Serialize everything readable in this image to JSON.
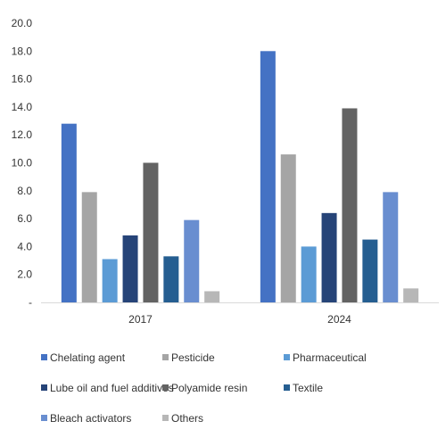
{
  "chart_data": {
    "type": "bar",
    "categories": [
      "2017",
      "2024"
    ],
    "series": [
      {
        "name": "Chelating agent",
        "values": [
          12.8,
          18.0
        ],
        "color": "#4472C4"
      },
      {
        "name": "Pesticide",
        "values": [
          7.9,
          10.6
        ],
        "color": "#A5A5A5"
      },
      {
        "name": "Pharmaceutical",
        "values": [
          3.1,
          4.0
        ],
        "color": "#5B9BD5"
      },
      {
        "name": "Lube oil and fuel additives",
        "values": [
          4.8,
          6.4
        ],
        "color": "#264478"
      },
      {
        "name": "Polyamide resin",
        "values": [
          10.0,
          13.9
        ],
        "color": "#636363"
      },
      {
        "name": "Textile",
        "values": [
          3.3,
          4.5
        ],
        "color": "#255E91"
      },
      {
        "name": "Bleach activators",
        "values": [
          5.9,
          7.9
        ],
        "color": "#698ED0"
      },
      {
        "name": "Others",
        "values": [
          0.8,
          1.0
        ],
        "color": "#B7B7B7"
      }
    ],
    "yticks": [
      "-",
      "2.0",
      "4.0",
      "6.0",
      "8.0",
      "10.0",
      "12.0",
      "14.0",
      "16.0",
      "18.0",
      "20.0"
    ],
    "ylim": [
      0,
      20
    ],
    "title": "",
    "xlabel": "",
    "ylabel": "",
    "grid": false,
    "legend_position": "bottom"
  }
}
